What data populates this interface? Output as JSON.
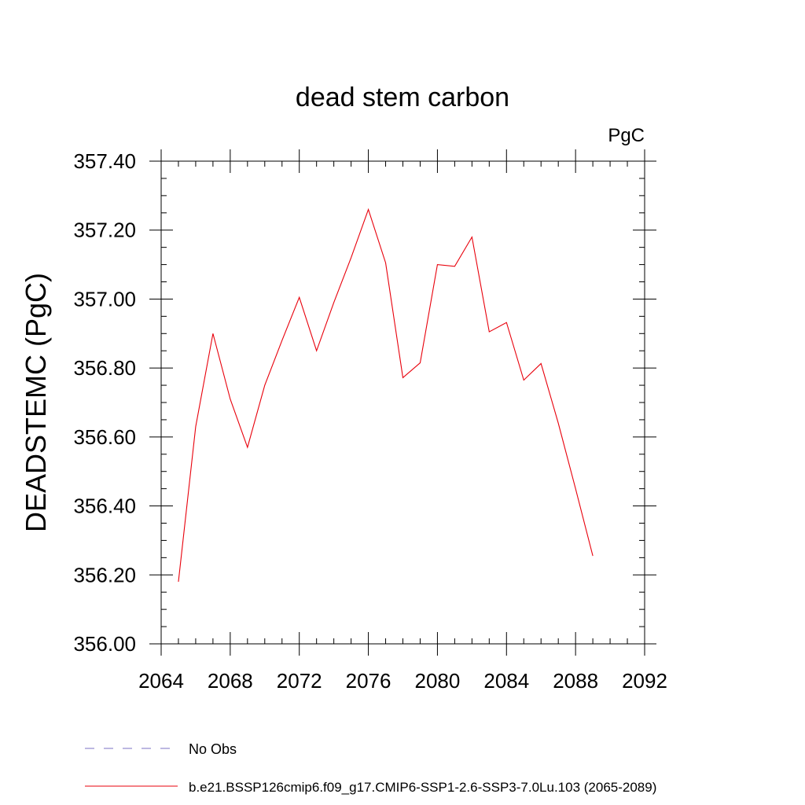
{
  "chart_data": {
    "type": "line",
    "title": "dead stem carbon",
    "units_label": "PgC",
    "ylabel": "DEADSTEMC  (PgC)",
    "xlabel": "",
    "xlim": [
      2064,
      2092
    ],
    "ylim": [
      356.0,
      357.4
    ],
    "x_ticks": [
      2064,
      2068,
      2072,
      2076,
      2080,
      2084,
      2088,
      2092
    ],
    "x_tick_labels": [
      "2064",
      "2068",
      "2072",
      "2076",
      "2080",
      "2084",
      "2088",
      "2092"
    ],
    "y_ticks": [
      356.0,
      356.2,
      356.4,
      356.6,
      356.8,
      357.0,
      357.2,
      357.4
    ],
    "y_tick_labels": [
      "356.00",
      "356.20",
      "356.40",
      "356.60",
      "356.80",
      "357.00",
      "357.20",
      "357.40"
    ],
    "grid": false,
    "series": [
      {
        "name": "b.e21.BSSP126cmip6.f09_g17.CMIP6-SSP1-2.6-SSP3-7.0Lu.103 (2065-2089)",
        "color": "#e8000b",
        "x": [
          2065,
          2066,
          2067,
          2068,
          2069,
          2070,
          2071,
          2072,
          2073,
          2074,
          2075,
          2076,
          2077,
          2078,
          2079,
          2080,
          2081,
          2082,
          2083,
          2084,
          2085,
          2086,
          2087,
          2088,
          2089
        ],
        "values": [
          356.18,
          356.63,
          356.9,
          356.71,
          356.57,
          356.75,
          356.88,
          357.005,
          356.85,
          356.99,
          357.12,
          357.26,
          357.105,
          356.772,
          356.815,
          357.1,
          357.095,
          357.18,
          356.905,
          356.932,
          356.765,
          356.813,
          356.64,
          356.45,
          356.255
        ]
      }
    ],
    "legend": {
      "placement": "bottom-left",
      "entries": [
        {
          "label": "No Obs",
          "style": "dashed",
          "color": "#7b72c4"
        },
        {
          "label": "b.e21.BSSP126cmip6.f09_g17.CMIP6-SSP1-2.6-SSP3-7.0Lu.103 (2065-2089)",
          "style": "solid",
          "color": "#e8000b"
        }
      ]
    }
  }
}
